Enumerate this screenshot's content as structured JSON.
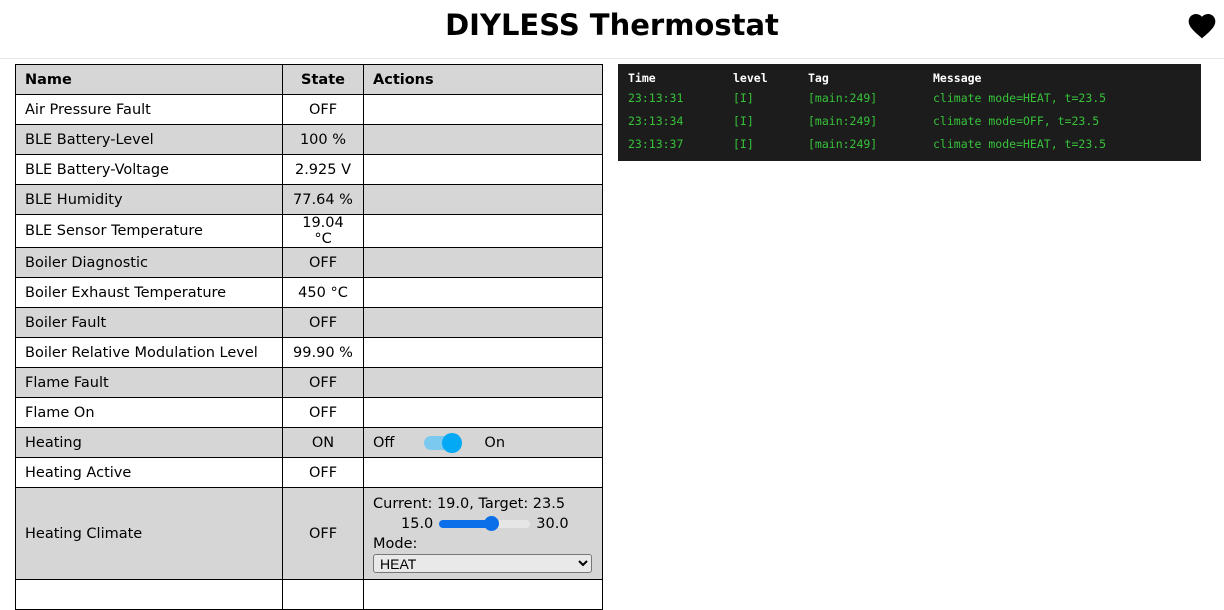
{
  "header": {
    "title": "DIYLESS Thermostat",
    "icon": "heart-icon"
  },
  "table": {
    "columns": [
      "Name",
      "State",
      "Actions"
    ],
    "rows": [
      {
        "name": "Air Pressure Fault",
        "state": "OFF"
      },
      {
        "name": "BLE Battery-Level",
        "state": "100 %"
      },
      {
        "name": "BLE Battery-Voltage",
        "state": "2.925 V"
      },
      {
        "name": "BLE Humidity",
        "state": "77.64 %"
      },
      {
        "name": "BLE Sensor Temperature",
        "state": "19.04 °C"
      },
      {
        "name": "Boiler Diagnostic",
        "state": "OFF"
      },
      {
        "name": "Boiler Exhaust Temperature",
        "state": "450 °C"
      },
      {
        "name": "Boiler Fault",
        "state": "OFF"
      },
      {
        "name": "Boiler Relative Modulation Level",
        "state": "99.90 %"
      },
      {
        "name": "Flame Fault",
        "state": "OFF"
      },
      {
        "name": "Flame On",
        "state": "OFF"
      },
      {
        "name": "Heating",
        "state": "ON",
        "switch": {
          "off_label": "Off",
          "on_label": "On",
          "checked": true
        }
      },
      {
        "name": "Heating Active",
        "state": "OFF"
      },
      {
        "name": "Heating Climate",
        "state": "OFF",
        "climate": {
          "status": "Current: 19.0, Target: 23.5",
          "min": "15.0",
          "max": "30.0",
          "target": 23.5,
          "mode_label": "Mode:",
          "mode": "HEAT"
        }
      }
    ]
  },
  "log": {
    "columns": [
      "Time",
      "level",
      "Tag",
      "Message"
    ],
    "rows": [
      [
        "23:13:31",
        "[I]",
        "[main:249]",
        "climate mode=HEAT, t=23.5"
      ],
      [
        "23:13:34",
        "[I]",
        "[main:249]",
        "climate mode=OFF, t=23.5"
      ],
      [
        "23:13:37",
        "[I]",
        "[main:249]",
        "climate mode=HEAT, t=23.5"
      ]
    ],
    "text_color": "#37c23a"
  }
}
